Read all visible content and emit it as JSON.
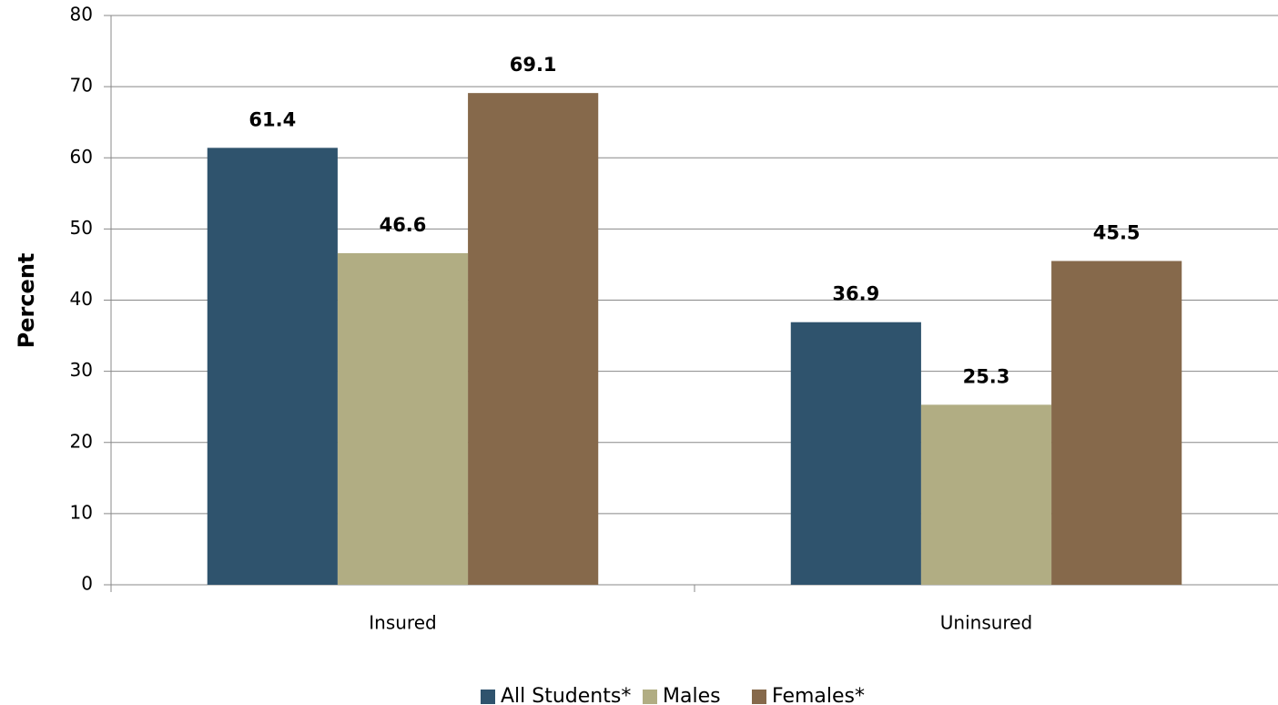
{
  "chart_data": {
    "type": "bar",
    "categories": [
      "Insured",
      "Uninsured"
    ],
    "series": [
      {
        "name": "All Students*",
        "color": "#2f536d",
        "values": [
          61.4,
          36.9
        ]
      },
      {
        "name": "Males",
        "color": "#b1ad83",
        "values": [
          46.6,
          25.3
        ]
      },
      {
        "name": "Females*",
        "color": "#86694b",
        "values": [
          69.1,
          45.5
        ]
      }
    ],
    "y_label": "Percent",
    "ylim": [
      0,
      80
    ],
    "yticks": [
      0,
      10,
      20,
      30,
      40,
      50,
      60,
      70,
      80
    ],
    "grid": true,
    "legend": "bottom"
  }
}
